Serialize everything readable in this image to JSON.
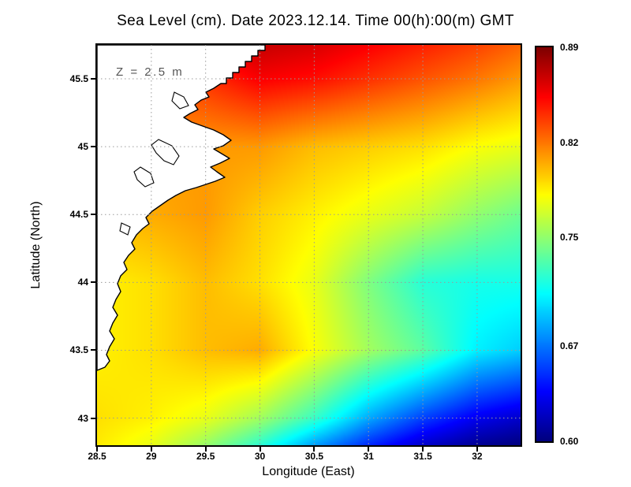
{
  "title": "Sea Level (cm). Date 2023.12.14. Time 00(h):00(m) GMT",
  "annotation": "Z = 2.5 m",
  "axes": {
    "x": {
      "label": "Longitude (East)",
      "ticks": [
        "28.5",
        "29",
        "29.5",
        "30",
        "30.5",
        "31",
        "31.5",
        "32"
      ],
      "range": [
        28.5,
        32.4
      ]
    },
    "y": {
      "label": "Latitude (North)",
      "ticks": [
        "43",
        "43.5",
        "44",
        "44.5",
        "45",
        "45.5"
      ],
      "range": [
        42.8,
        45.75
      ]
    }
  },
  "colorbar": {
    "labels": [
      "0.89",
      "0.82",
      "0.75",
      "0.67",
      "0.60"
    ],
    "min": 0.6,
    "max": 0.89,
    "colormap": "jet"
  },
  "chart_data": {
    "type": "heatmap",
    "title": "Sea Level (cm). Date 2023.12.14. Time 00(h):00(m) GMT",
    "xlabel": "Longitude (East)",
    "ylabel": "Latitude (North)",
    "xlim": [
      28.5,
      32.4
    ],
    "ylim": [
      42.8,
      45.75
    ],
    "grid": true,
    "colormap": "jet",
    "value_range": [
      0.6,
      0.89
    ],
    "x_lon": [
      28.5,
      29.0,
      29.5,
      30.0,
      30.5,
      31.0,
      31.5,
      32.0,
      32.4
    ],
    "y_lat": [
      42.8,
      43.0,
      43.5,
      44.0,
      44.5,
      45.0,
      45.5,
      45.75
    ],
    "values": [
      [
        0.787,
        0.775,
        0.752,
        0.722,
        0.682,
        0.648,
        0.622,
        0.606,
        0.6
      ],
      [
        0.79,
        0.785,
        0.775,
        0.755,
        0.725,
        0.685,
        0.655,
        0.632,
        0.622
      ],
      [
        0.785,
        0.79,
        0.8,
        0.805,
        0.78,
        0.755,
        0.735,
        0.705,
        0.695
      ],
      [
        0.785,
        0.79,
        0.8,
        0.79,
        0.775,
        0.745,
        0.72,
        0.715,
        0.715
      ],
      [
        0.8,
        0.805,
        0.81,
        0.795,
        0.785,
        0.775,
        0.765,
        0.75,
        0.74
      ],
      [
        0.81,
        0.81,
        0.81,
        0.81,
        0.8,
        0.795,
        0.79,
        0.78,
        0.775
      ],
      [
        0.82,
        0.83,
        0.84,
        0.855,
        0.85,
        0.84,
        0.83,
        0.82,
        0.81
      ],
      [
        0.84,
        0.85,
        0.86,
        0.87,
        0.865,
        0.855,
        0.845,
        0.835,
        0.825
      ]
    ],
    "annotations": [
      "Z = 2.5 m"
    ],
    "legend_position": "right-colorbar"
  }
}
